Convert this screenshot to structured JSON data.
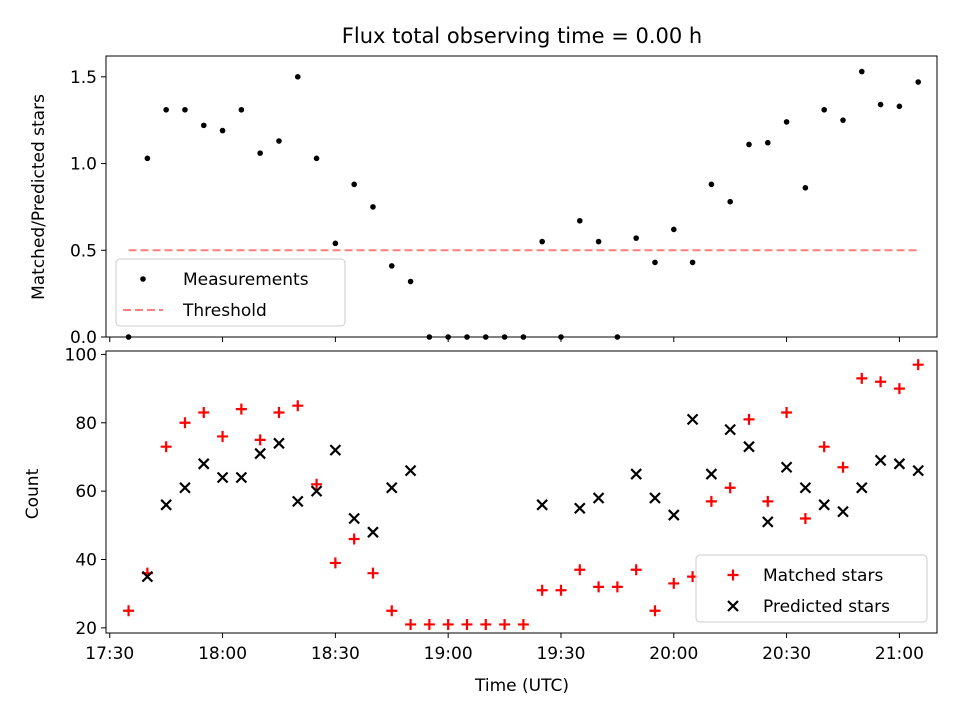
{
  "figure": {
    "title": "Flux total observing time = 0.00 h",
    "xlabel": "Time (UTC)"
  },
  "chart_data": [
    {
      "type": "scatter",
      "ylabel": "Matched/Predicted stars",
      "ylim": [
        0,
        1.62
      ],
      "yticks": [
        0.0,
        0.5,
        1.0,
        1.5
      ],
      "ytick_labels": [
        "0.0",
        "0.5",
        "1.0",
        "1.5"
      ],
      "legend_position": "bottom-left",
      "series": [
        {
          "name": "Measurements",
          "style": "dot",
          "color": "#000000",
          "x": [
            "17:35",
            "17:40",
            "17:45",
            "17:50",
            "17:55",
            "18:00",
            "18:05",
            "18:10",
            "18:15",
            "18:20",
            "18:25",
            "18:30",
            "18:35",
            "18:40",
            "18:45",
            "18:50",
            "18:55",
            "19:00",
            "19:05",
            "19:10",
            "19:15",
            "19:20",
            "19:25",
            "19:30",
            "19:35",
            "19:40",
            "19:45",
            "19:50",
            "19:55",
            "20:00",
            "20:05",
            "20:10",
            "20:15",
            "20:20",
            "20:25",
            "20:30",
            "20:35",
            "20:40",
            "20:45",
            "20:50",
            "20:55",
            "21:00",
            "21:05"
          ],
          "y": [
            0.0,
            1.03,
            1.31,
            1.31,
            1.22,
            1.19,
            1.31,
            1.06,
            1.13,
            1.5,
            1.03,
            0.54,
            0.88,
            0.75,
            0.41,
            0.32,
            0.0,
            0.0,
            0.0,
            0.0,
            0.0,
            0.0,
            0.55,
            0.0,
            0.67,
            0.55,
            0.0,
            0.57,
            0.43,
            0.62,
            0.43,
            0.88,
            0.78,
            1.11,
            1.12,
            1.24,
            0.86,
            1.31,
            1.25,
            1.53,
            1.34,
            1.33,
            1.47
          ]
        },
        {
          "name": "Threshold",
          "style": "dashed-line",
          "color": "#ff7f7f",
          "x": [
            "17:35",
            "21:05"
          ],
          "y": [
            0.5,
            0.5
          ]
        }
      ]
    },
    {
      "type": "scatter",
      "ylabel": "Count",
      "ylim": [
        18.5,
        101
      ],
      "yticks": [
        20,
        40,
        60,
        80,
        100
      ],
      "ytick_labels": [
        "20",
        "40",
        "60",
        "80",
        "100"
      ],
      "xlim": [
        "17:29",
        "21:10"
      ],
      "xticks": [
        "17:30",
        "18:00",
        "18:30",
        "19:00",
        "19:30",
        "20:00",
        "20:30",
        "21:00"
      ],
      "xtick_labels": [
        "17:30",
        "18:00",
        "18:30",
        "19:00",
        "19:30",
        "20:00",
        "20:30",
        "21:00"
      ],
      "legend_position": "bottom-right",
      "series": [
        {
          "name": "Matched stars",
          "marker": "+",
          "color": "#ff0000",
          "x": [
            "17:35",
            "17:40",
            "17:45",
            "17:50",
            "17:55",
            "18:00",
            "18:05",
            "18:10",
            "18:15",
            "18:20",
            "18:25",
            "18:30",
            "18:35",
            "18:40",
            "18:45",
            "18:50",
            "18:55",
            "19:00",
            "19:05",
            "19:10",
            "19:15",
            "19:20",
            "19:25",
            "19:30",
            "19:35",
            "19:40",
            "19:45",
            "19:50",
            "19:55",
            "20:00",
            "20:05",
            "20:10",
            "20:15",
            "20:20",
            "20:25",
            "20:30",
            "20:35",
            "20:40",
            "20:45",
            "20:50",
            "20:55",
            "21:00",
            "21:05"
          ],
          "y": [
            25,
            36,
            73,
            80,
            83,
            76,
            84,
            75,
            83,
            85,
            62,
            39,
            46,
            36,
            25,
            21,
            21,
            21,
            21,
            21,
            21,
            21,
            31,
            31,
            37,
            32,
            32,
            37,
            25,
            33,
            35,
            57,
            61,
            81,
            57,
            83,
            52,
            73,
            67,
            93,
            92,
            90,
            97
          ]
        },
        {
          "name": "Predicted stars",
          "marker": "x",
          "color": "#000000",
          "x": [
            "17:40",
            "17:45",
            "17:50",
            "17:55",
            "18:00",
            "18:05",
            "18:10",
            "18:15",
            "18:20",
            "18:25",
            "18:30",
            "18:35",
            "18:40",
            "18:45",
            "18:50",
            "19:25",
            "19:35",
            "19:40",
            "19:50",
            "19:55",
            "20:00",
            "20:05",
            "20:10",
            "20:15",
            "20:20",
            "20:25",
            "20:30",
            "20:35",
            "20:40",
            "20:45",
            "20:50",
            "20:55",
            "21:00",
            "21:05"
          ],
          "y": [
            35,
            56,
            61,
            68,
            64,
            64,
            71,
            74,
            57,
            60,
            72,
            52,
            48,
            61,
            66,
            56,
            55,
            58,
            65,
            58,
            53,
            81,
            65,
            78,
            73,
            51,
            67,
            61,
            56,
            54,
            61,
            69,
            68,
            66
          ]
        }
      ]
    }
  ]
}
